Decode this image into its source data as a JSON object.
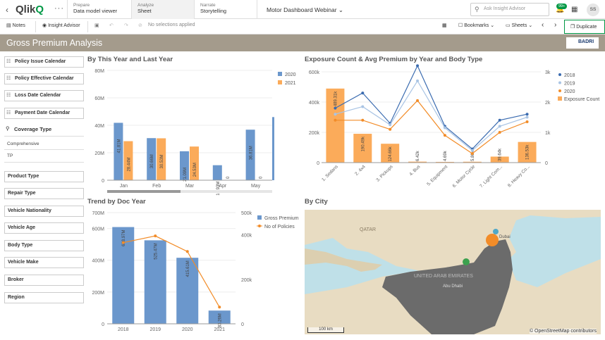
{
  "app": {
    "logo": "Qlik",
    "logo_q": "Q",
    "menu_dots": "···",
    "tabs": [
      {
        "label": "Prepare",
        "sub": "Data model viewer"
      },
      {
        "label": "Analyze",
        "sub": "Sheet"
      },
      {
        "label": "Narrate",
        "sub": "Storytelling"
      }
    ],
    "app_title": "Motor Dashboard Webinar",
    "search_placeholder": "Ask Insight Advisor",
    "notif_badge": "99+",
    "avatar": "SS"
  },
  "toolbar": {
    "notes": "Notes",
    "insight": "Insight Advisor",
    "selections": "No selections applied",
    "bookmarks": "Bookmarks",
    "sheets": "Sheets",
    "duplicate": "Duplicate"
  },
  "sheet": {
    "title": "Gross Premium Analysis",
    "brand": "BADRI"
  },
  "filters": {
    "calendars": [
      "Policy Issue Calendar",
      "Policy Effective Calendar",
      "Loss Date Calendar",
      "Payment Date Calendar"
    ],
    "coverage_title": "Coverage Type",
    "coverage_items": [
      "Comprehensive",
      "TP"
    ],
    "panes": [
      "Product Type",
      "Repair Type",
      "Vehicle Nationality",
      "Vehicle Age",
      "Body Type",
      "Vehicle Make",
      "Broker",
      "Region"
    ]
  },
  "panels": {
    "year_title": "By This Year and Last Year",
    "exposure_title": "Exposure Count & Avg Premium by Year and Body Type",
    "trend_title": "Trend by Doc Year",
    "city_title": "By City"
  },
  "map": {
    "labels": [
      "QATAR",
      "UNITED ARAB EMIRATES",
      "Abu Dhabi",
      "Dubai"
    ],
    "scale": "100 km",
    "attribution": "© OpenStreetMap contributors"
  },
  "colors": {
    "blue": "#6b97cc",
    "orange": "#fbab5a",
    "orange_line": "#f28c28",
    "green": "#009845",
    "title_band": "#a49b8c"
  },
  "chart_data": [
    {
      "type": "bar",
      "categories": [
        "Jan",
        "Feb",
        "Mar",
        "Apr",
        "May"
      ],
      "series": [
        {
          "name": "2020",
          "values": [
            41.81,
            30.66,
            21.09,
            10.93,
            36.81
          ],
          "labels": [
            "41.81M",
            "30.66M",
            "21.09M",
            "10.93M",
            "36.81M"
          ]
        },
        {
          "name": "2021",
          "values": [
            28.44,
            30.53,
            24.53,
            0,
            0
          ],
          "labels": [
            "28.44M",
            "30.53M",
            "24.53M",
            "0",
            "0"
          ]
        }
      ],
      "yticks": [
        "0",
        "20M",
        "40M",
        "60M",
        "80M"
      ],
      "ylim": [
        0,
        80
      ]
    },
    {
      "type": "bar-line",
      "categories": [
        "1. Sedans",
        "2. 4x4",
        "3. Pickups",
        "4. Bus",
        "5. Equipment",
        "6. Motor Cycle",
        "7. Light Com...",
        "8. Heavy Co..."
      ],
      "bars": {
        "name": "Exposure Count",
        "values": [
          489.31,
          190.49,
          124.66,
          6.42,
          4.69,
          5.8,
          39.64,
          136.53
        ],
        "labels": [
          "489.31k",
          "190.49k",
          "124.66k",
          "6.42k",
          "4.69k",
          "5.80k",
          "39.64k",
          "136.53k"
        ]
      },
      "lines": [
        {
          "name": "2018",
          "values": [
            1.8,
            2.3,
            1.3,
            3.2,
            1.2,
            0.45,
            1.4,
            1.6
          ]
        },
        {
          "name": "2019",
          "values": [
            1.6,
            1.85,
            1.25,
            2.7,
            1.15,
            0.4,
            1.2,
            1.5
          ]
        },
        {
          "name": "2020",
          "values": [
            1.4,
            1.4,
            1.1,
            2.05,
            0.9,
            0.3,
            1.0,
            1.35
          ]
        }
      ],
      "yticks_left": [
        "0",
        "200k",
        "400k",
        "600k"
      ],
      "yticks_right": [
        "0",
        "1k",
        "2k",
        "3k"
      ],
      "ylim_left": [
        0,
        600
      ],
      "ylim_right": [
        0,
        3
      ]
    },
    {
      "type": "bar-line",
      "categories": [
        "2018",
        "2019",
        "2020",
        "2021"
      ],
      "bars": {
        "name": "Gross Premium",
        "values": [
          608.97,
          525.47,
          415.61,
          83.26
        ],
        "labels": [
          "608.97M",
          "525.47M",
          "415.61M",
          "83.26M"
        ]
      },
      "line": {
        "name": "No of Policies",
        "values": [
          365,
          395,
          325,
          75
        ]
      },
      "yticks_left": [
        "0",
        "200M",
        "400M",
        "600M",
        "700M"
      ],
      "yticks_right": [
        "0",
        "200k",
        "400k",
        "500k"
      ],
      "ylim_left": [
        0,
        700
      ],
      "ylim_right": [
        0,
        500
      ]
    }
  ]
}
